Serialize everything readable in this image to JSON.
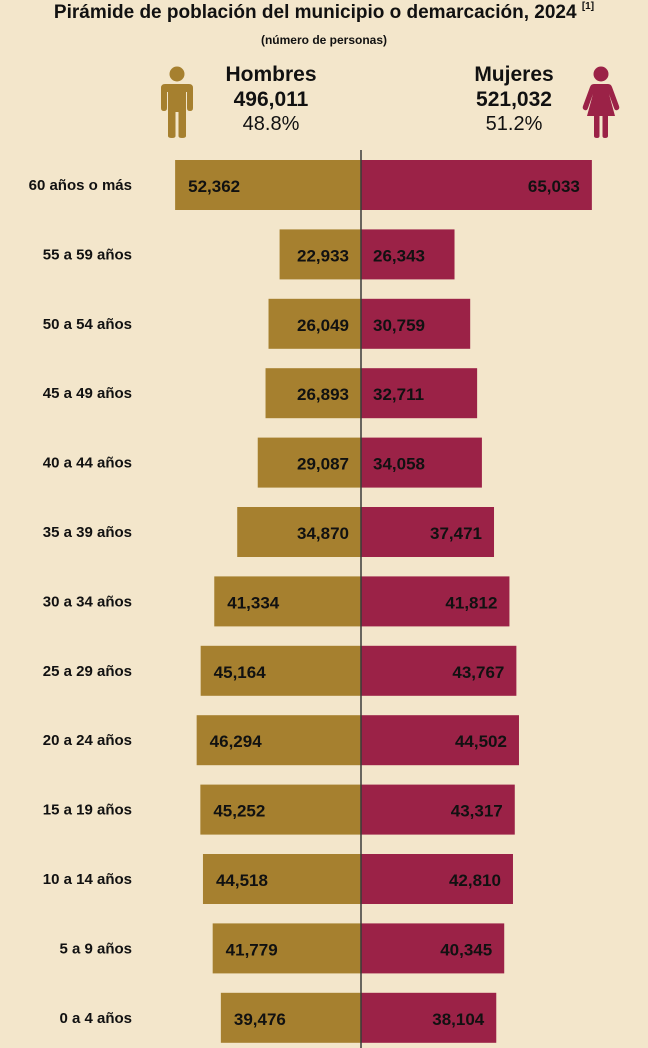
{
  "title": "Pirámide de población del municipio o demarcación, 2024",
  "title_note": "[1]",
  "subtitle": "(número de personas)",
  "men": {
    "label": "Hombres",
    "total": "496,011",
    "percent": "48.8%",
    "color": "#a6802f",
    "icon": "man-icon"
  },
  "women": {
    "label": "Mujeres",
    "total": "521,032",
    "percent": "51.2%",
    "color": "#9b2247",
    "icon": "woman-icon"
  },
  "chart_data": {
    "type": "bar",
    "orientation": "horizontal-pyramid",
    "categories": [
      "60 años o más",
      "55 a 59 años",
      "50 a 54 años",
      "45 a 49 años",
      "40 a 44 años",
      "35 a 39 años",
      "30 a 34 años",
      "25 a 29 años",
      "20 a 24 años",
      "15 a 19 años",
      "10 a 14 años",
      "5 a 9 años",
      "0 a 4 años"
    ],
    "series": [
      {
        "name": "Hombres",
        "values": [
          52362,
          22933,
          26049,
          26893,
          29087,
          34870,
          41334,
          45164,
          46294,
          45252,
          44518,
          41779,
          39476
        ],
        "labels": [
          "52,362",
          "22,933",
          "26,049",
          "26,893",
          "29,087",
          "34,870",
          "41,334",
          "45,164",
          "46,294",
          "45,252",
          "44,518",
          "41,779",
          "39,476"
        ]
      },
      {
        "name": "Mujeres",
        "values": [
          65033,
          26343,
          30759,
          32711,
          34058,
          37471,
          41812,
          43767,
          44502,
          43317,
          42810,
          40345,
          38104
        ],
        "labels": [
          "65,033",
          "26,343",
          "30,759",
          "32,711",
          "34,058",
          "37,471",
          "41,812",
          "43,767",
          "44,502",
          "43,317",
          "42,810",
          "40,345",
          "38,104"
        ]
      }
    ],
    "title": "Pirámide de población del municipio o demarcación, 2024",
    "xlabel": "",
    "ylabel": "",
    "grid": false,
    "legend": "top"
  }
}
